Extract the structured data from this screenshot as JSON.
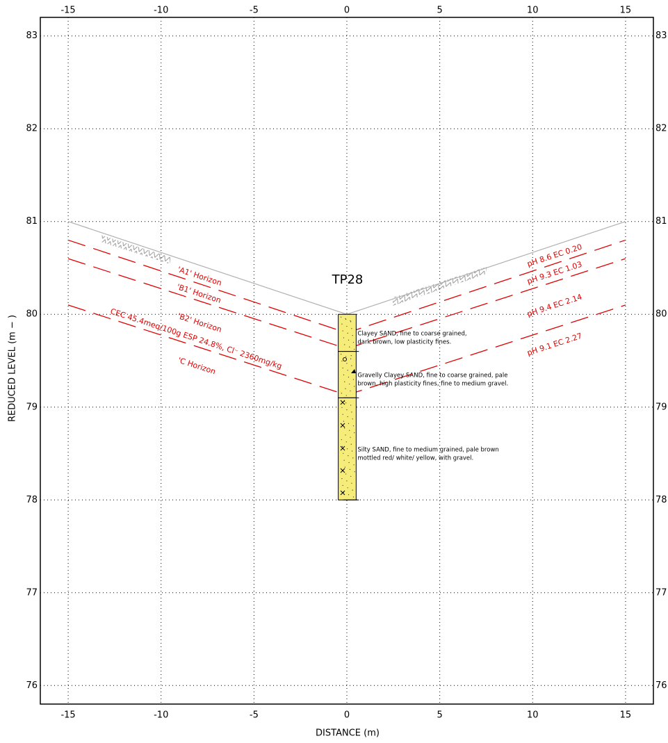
{
  "chart_data": {
    "type": "section",
    "xlabel": "DISTANCE (m)",
    "ylabel": "REDUCED LEVEL (m − )",
    "xlim": [
      -16.5,
      16.5
    ],
    "ylim": [
      75.8,
      83.2
    ],
    "xticks": [
      -15,
      -10,
      -5,
      0,
      5,
      10,
      15
    ],
    "yticks": [
      76,
      77,
      78,
      79,
      80,
      81,
      82,
      83
    ],
    "grid": true,
    "x": [
      -15,
      0,
      15
    ],
    "series": [
      {
        "color": "#b0b0b0",
        "values": [
          81,
          80,
          81
        ]
      },
      {
        "color": "#e00000",
        "values": [
          80.8,
          79.8,
          80.8
        ]
      },
      {
        "color": "#e00000",
        "values": [
          80.6,
          79.63,
          80.6
        ]
      },
      {
        "color": "#e00000",
        "values": [
          80.1,
          79.13,
          80.1
        ]
      }
    ],
    "annotations": [
      "'A1' Horizon",
      "'B1' Horizon",
      "'B2' Horizon",
      "CEC 45.4meq/100g ESP 24.8%, Cl⁻ 2360mg/kg",
      "'C Horizon",
      "pH 8.6 EC 0.20",
      "pH 9.3 EC 1.03",
      "pH 9.4 EC 2.14",
      "pH 9.1 EC 2.27"
    ],
    "borehole": {
      "label": "TP28",
      "color": "#f5ec7a",
      "layers": [
        {
          "top": 80,
          "bottom": 79.6,
          "description": [
            "Clayey SAND, fine to coarse grained,",
            "dark brown, low plasticity fines."
          ]
        },
        {
          "top": 79.6,
          "bottom": 79.1,
          "description": [
            "Gravelly Clayey SAND, fine to coarse grained, pale",
            "brown, high plasticity fines, fine to medium gravel."
          ]
        },
        {
          "top": 79.1,
          "bottom": 78,
          "description": [
            "Silty SAND, fine to medium grained, pale brown",
            "mottled red/ white/ yellow, with gravel."
          ]
        }
      ]
    }
  }
}
